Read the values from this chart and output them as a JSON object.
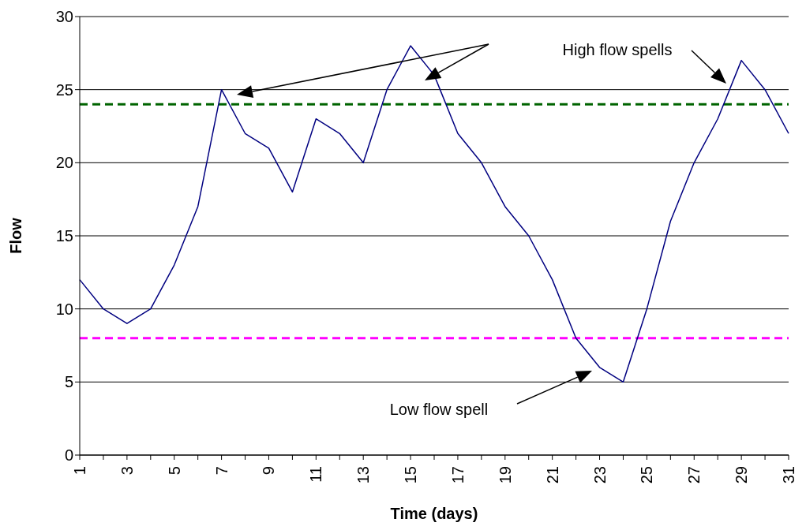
{
  "chart_data": {
    "type": "line",
    "xlabel": "Time (days)",
    "ylabel": "Flow",
    "categories": [
      "1",
      null,
      "3",
      null,
      "5",
      null,
      "7",
      null,
      "9",
      null,
      "11",
      null,
      "13",
      null,
      "15",
      null,
      "17",
      null,
      "19",
      null,
      "21",
      null,
      "23",
      null,
      "25",
      null,
      "27",
      null,
      "29",
      null,
      "31"
    ],
    "series": [
      {
        "color": "#000080",
        "values": [
          12,
          10,
          9,
          10,
          13,
          17,
          25,
          22,
          21,
          18,
          23,
          22,
          20,
          25,
          28,
          26,
          22,
          20,
          17,
          15,
          12,
          8,
          6,
          5,
          10,
          16,
          20,
          23,
          27,
          25,
          22
        ]
      }
    ],
    "ylim": [
      0,
      30
    ],
    "yticks": [
      0,
      5,
      10,
      15,
      20,
      25,
      30
    ],
    "grid": "y",
    "marker": "none",
    "line_style": "solid",
    "ref_lines": [
      {
        "axis": "y",
        "value": 24,
        "color": "#006400",
        "line_style": "dashed"
      },
      {
        "axis": "y",
        "value": 8,
        "color": "#ff00ff",
        "line_style": "dashed"
      }
    ],
    "annotations": [
      "High flow spells",
      "Low flow spell"
    ]
  }
}
